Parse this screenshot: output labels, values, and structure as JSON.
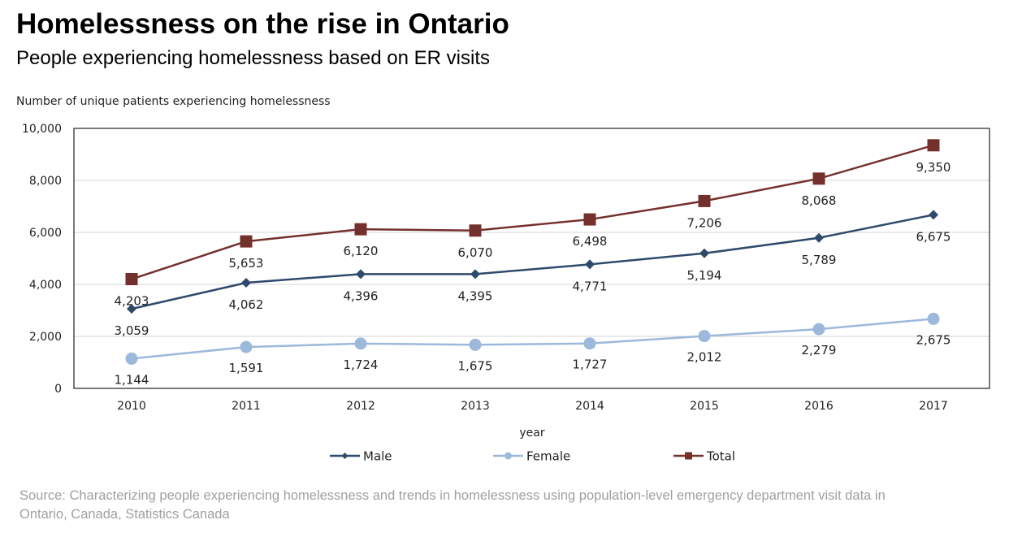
{
  "header": {
    "title": "Homelessness on the rise in Ontario",
    "subtitle": "People experiencing homelessness based on ER visits"
  },
  "footer": {
    "source": "Source: Characterizing people experiencing homelessness and trends in homelessness using population-level emergency department visit data in Ontario, Canada, Statistics Canada"
  },
  "chart_data": {
    "type": "line",
    "title": "Homelessness on the rise in Ontario",
    "subtitle": "People experiencing homelessness based on ER visits",
    "xlabel": "year",
    "ylabel": "Number of unique patients experiencing homelessness",
    "ylim": [
      0,
      10000
    ],
    "y_ticks": [
      0,
      2000,
      4000,
      6000,
      8000,
      10000
    ],
    "y_tick_labels": [
      "0",
      "2,000",
      "4,000",
      "6,000",
      "8,000",
      "10,000"
    ],
    "grid": true,
    "legend_position": "bottom",
    "categories": [
      "2010",
      "2011",
      "2012",
      "2013",
      "2014",
      "2015",
      "2016",
      "2017"
    ],
    "series": [
      {
        "name": "Male",
        "color": "#2e4a6b",
        "marker": "diamond",
        "values": [
          3059,
          4062,
          4396,
          4395,
          4771,
          5194,
          5789,
          6675
        ],
        "labels": [
          "3,059",
          "4,062",
          "4,396",
          "4,395",
          "4,771",
          "5,194",
          "5,789",
          "6,675"
        ]
      },
      {
        "name": "Female",
        "color": "#9cb8da",
        "marker": "circle",
        "values": [
          1144,
          1591,
          1724,
          1675,
          1727,
          2012,
          2279,
          2675
        ],
        "labels": [
          "1,144",
          "1,591",
          "1,724",
          "1,675",
          "1,727",
          "2,012",
          "2,279",
          "2,675"
        ]
      },
      {
        "name": "Total",
        "color": "#74302c",
        "marker": "square",
        "values": [
          4203,
          5653,
          6120,
          6070,
          6498,
          7206,
          8068,
          9350
        ],
        "labels": [
          "4,203",
          "5,653",
          "6,120",
          "6,070",
          "6,498",
          "7,206",
          "8,068",
          "9,350"
        ]
      }
    ]
  }
}
